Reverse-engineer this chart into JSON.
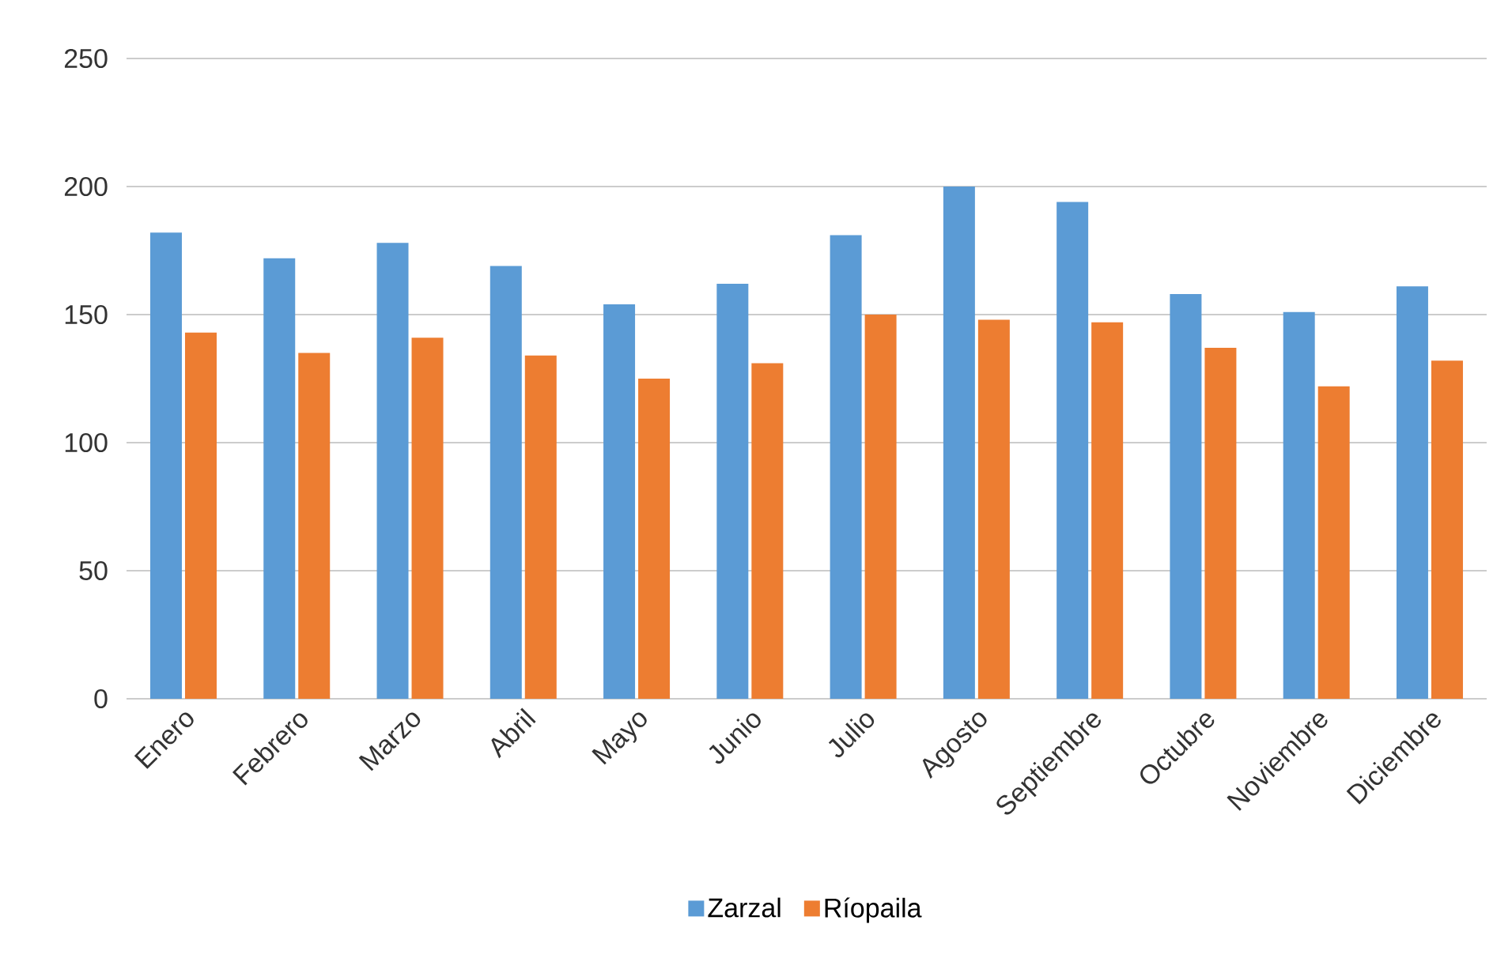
{
  "chart_data": {
    "type": "bar",
    "categories": [
      "Enero",
      "Febrero",
      "Marzo",
      "Abril",
      "Mayo",
      "Junio",
      "Julio",
      "Agosto",
      "Septiembre",
      "Octubre",
      "Noviembre",
      "Diciembre"
    ],
    "series": [
      {
        "name": "Zarzal",
        "color": "#5b9bd5",
        "values": [
          182,
          172,
          178,
          169,
          154,
          162,
          181,
          200,
          194,
          158,
          151,
          161
        ]
      },
      {
        "name": "Ríopaila",
        "color": "#ed7d31",
        "values": [
          143,
          135,
          141,
          134,
          125,
          131,
          150,
          148,
          147,
          137,
          122,
          132
        ]
      }
    ],
    "ylim": [
      0,
      250
    ],
    "yticks": [
      0,
      50,
      100,
      150,
      200,
      250
    ],
    "grid": "y",
    "legend": "bottom"
  }
}
